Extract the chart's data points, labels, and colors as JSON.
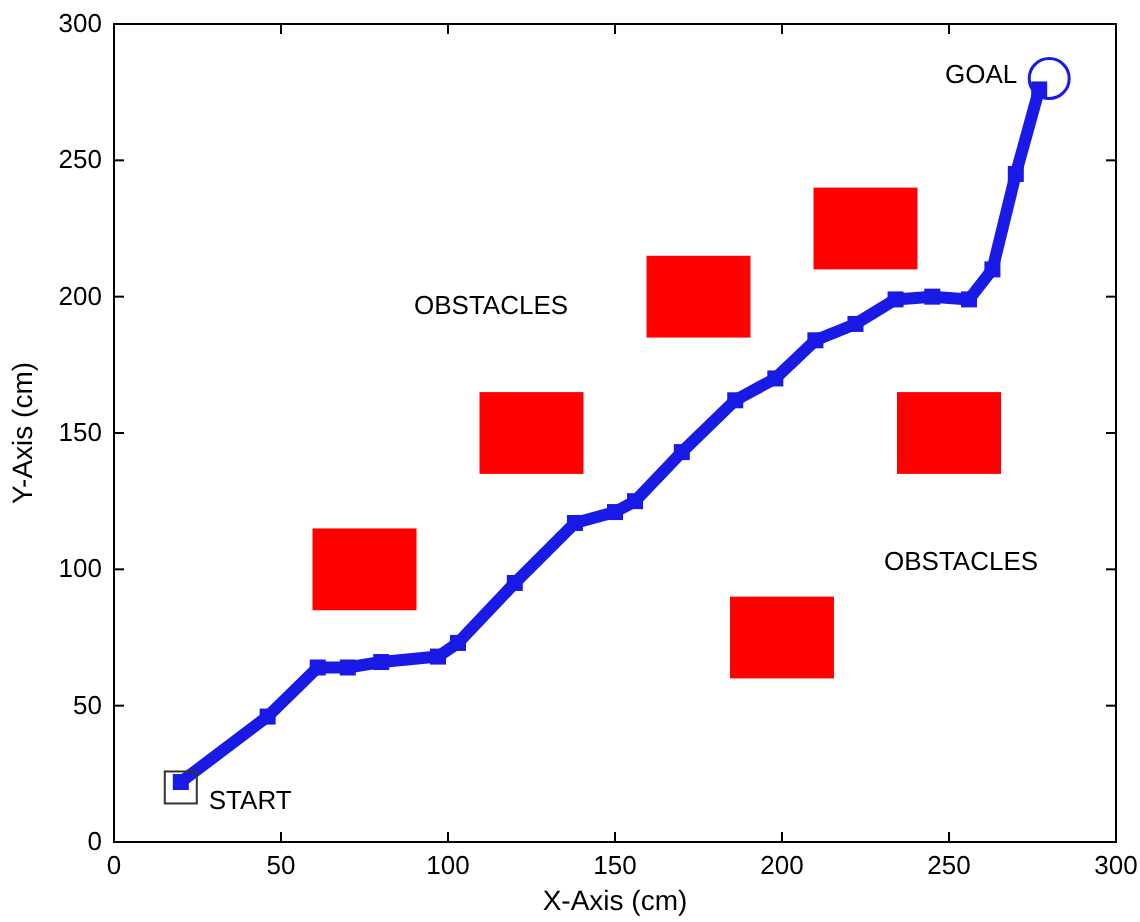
{
  "chart_data": {
    "type": "line",
    "xlabel": "X-Axis (cm)",
    "ylabel": "Y-Axis (cm)",
    "xlim": [
      0,
      300
    ],
    "ylim": [
      0,
      300
    ],
    "xticks": [
      0,
      50,
      100,
      150,
      200,
      250,
      300
    ],
    "yticks": [
      0,
      50,
      100,
      150,
      200,
      250,
      300
    ],
    "grid": false,
    "marker": "square",
    "line_style": "solid",
    "series": [
      {
        "type": "bar",
        "color": "#ff0000",
        "x": [
          75,
          125,
          175,
          200,
          225,
          250
        ],
        "base": [
          85,
          135,
          185,
          60,
          210,
          135
        ],
        "values": [
          30,
          30,
          30,
          30,
          30,
          30
        ]
      },
      {
        "color": "#1a1ae6",
        "x": [
          20,
          46,
          61,
          70,
          80,
          97,
          103,
          120,
          138,
          150,
          156,
          170,
          186,
          198,
          210,
          222,
          234,
          245,
          256,
          263,
          270,
          277
        ],
        "values": [
          22,
          46,
          64,
          64,
          66,
          68,
          73,
          95,
          117,
          121,
          125,
          143,
          162,
          170,
          184,
          190,
          199,
          200,
          199,
          210,
          245,
          276
        ]
      },
      {
        "type": "scatter",
        "marker": "square",
        "color": "#333333",
        "x": [
          20
        ],
        "values": [
          20
        ]
      },
      {
        "type": "scatter",
        "marker": "circle",
        "color": "#1a1ae6",
        "x": [
          280
        ],
        "values": [
          280
        ]
      }
    ],
    "annotations": [
      {
        "text": "START",
        "x": 20,
        "y": 20
      },
      {
        "text": "GOAL",
        "x": 280,
        "y": 280
      },
      "OBSTACLES",
      "OBSTACLES"
    ]
  }
}
